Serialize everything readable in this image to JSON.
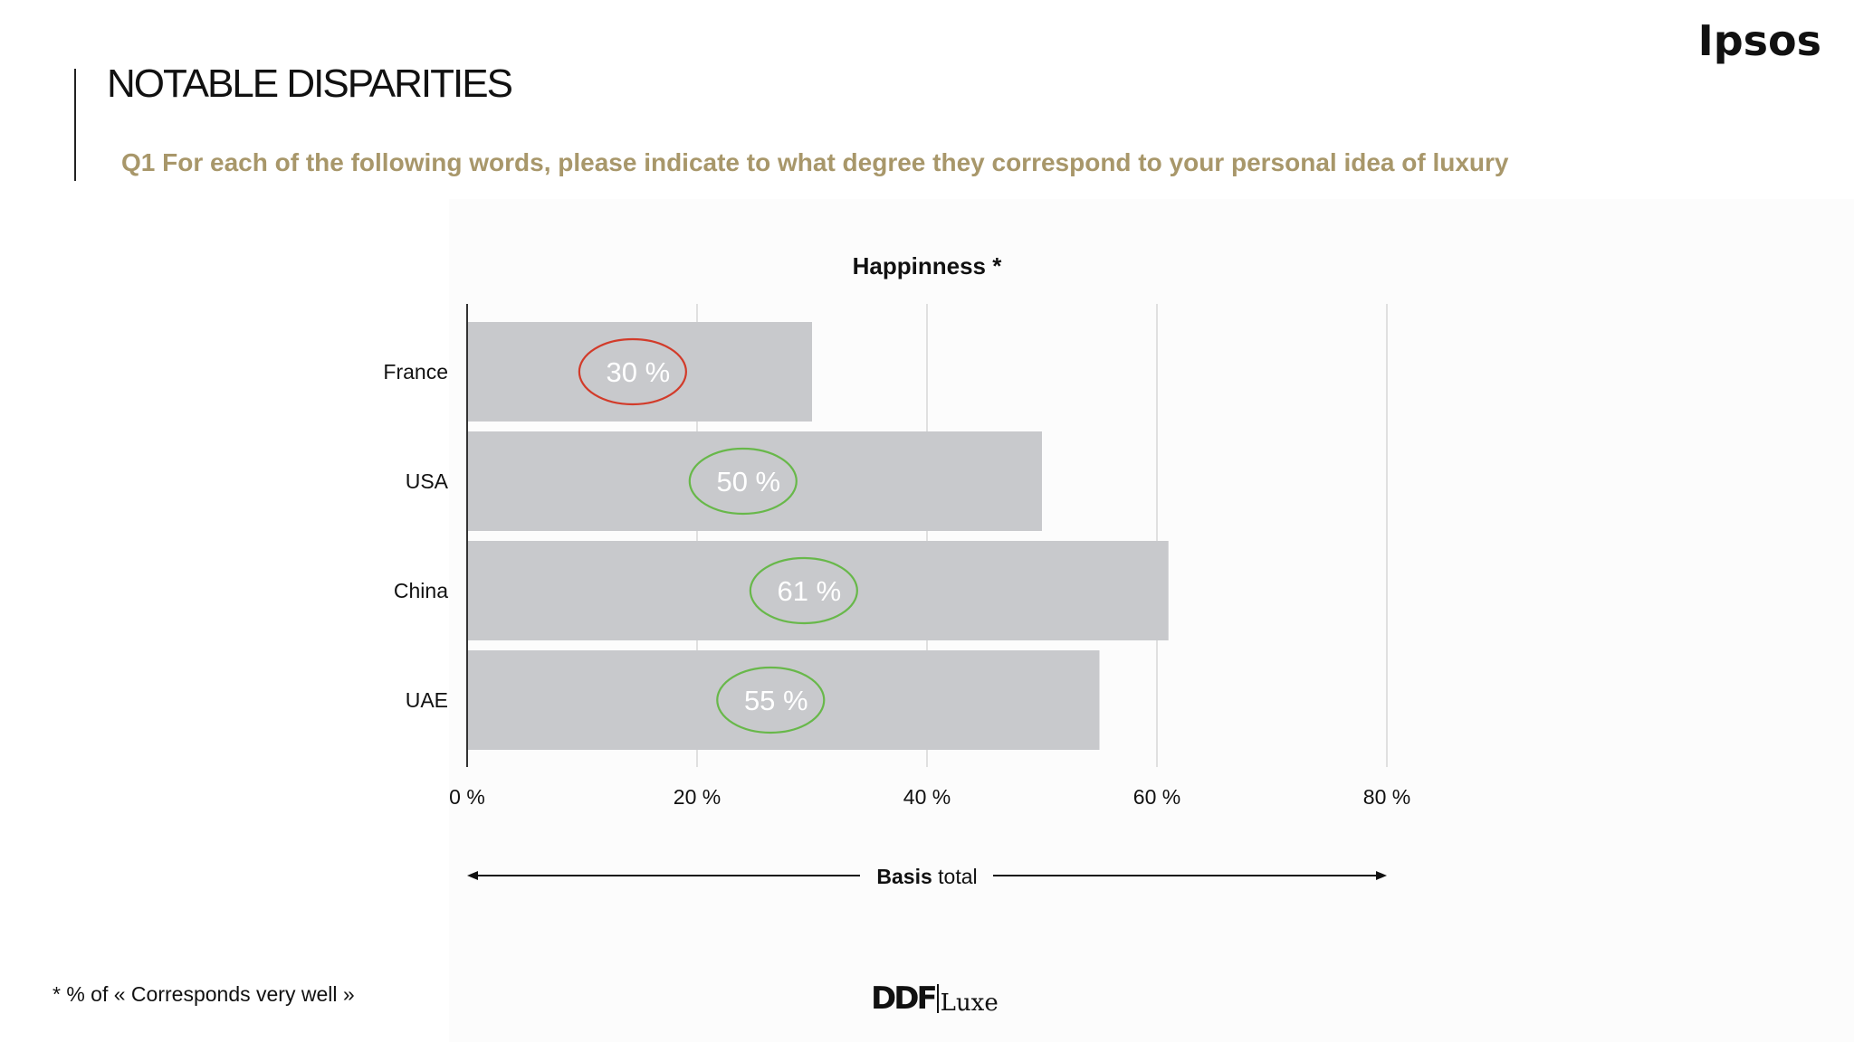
{
  "header": {
    "brand": "Ipsos",
    "title": "NOTABLE DISPARITIES",
    "question": "Q1 For each of the following words, please indicate to what degree they correspond to your personal idea of luxury"
  },
  "footer": {
    "note": "* % of « Corresponds very well »",
    "logo_main": "DDF",
    "logo_sub": "Luxe"
  },
  "colors": {
    "bar": "#c8c9cc",
    "highlight_low": "#d23b2a",
    "highlight_high": "#68b84a",
    "title_accent": "#a8976a"
  },
  "chart_data": {
    "type": "bar",
    "orientation": "horizontal",
    "title": "Happinness *",
    "categories": [
      "France",
      "USA",
      "China",
      "UAE"
    ],
    "values": [
      30,
      50,
      61,
      55
    ],
    "value_labels": [
      "30 %",
      "50 %",
      "61 %",
      "55 %"
    ],
    "highlight": [
      "low",
      "high",
      "high",
      "high"
    ],
    "xlim": [
      0,
      80
    ],
    "xticks": [
      0,
      20,
      40,
      60,
      80
    ],
    "xtick_labels": [
      "0 %",
      "20 %",
      "40 %",
      "60 %",
      "80 %"
    ],
    "grid": true,
    "basis": {
      "bold": "Basis",
      "rest": " total"
    }
  }
}
